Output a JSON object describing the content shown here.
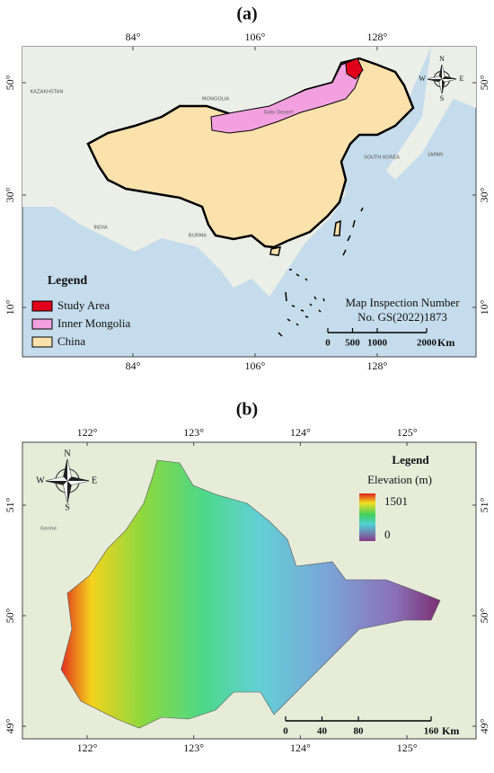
{
  "panel_a": {
    "label": "(a)",
    "lon_ticks": [
      {
        "value": 84,
        "label": "84°"
      },
      {
        "value": 106,
        "label": "106°"
      },
      {
        "value": 128,
        "label": "128°"
      }
    ],
    "lat_ticks": [
      {
        "value": 50,
        "label": "50°"
      },
      {
        "value": 30,
        "label": "30°"
      },
      {
        "value": 10,
        "label": "10°"
      }
    ],
    "place_labels": [
      "KAZAKHSTAN",
      "MONGOLIA",
      "Gobi Desert",
      "SOUTH KOREA",
      "JAPAN",
      "INDIA",
      "BURMA"
    ],
    "legend": {
      "title": "Legend",
      "items": [
        "Study Area",
        "Inner Mongolia",
        "China"
      ]
    },
    "note": [
      "Map Inspection Number",
      "No. GS(2022)1873"
    ],
    "scale_bar": {
      "ticks": [
        0,
        500,
        1000,
        2000
      ],
      "unit": "Km"
    },
    "compass": [
      "N",
      "E",
      "S",
      "W"
    ]
  },
  "panel_b": {
    "label": "(b)",
    "lon_ticks": [
      {
        "value": 122,
        "label": "122°"
      },
      {
        "value": 123,
        "label": "123°"
      },
      {
        "value": 124,
        "label": "124°"
      },
      {
        "value": 125,
        "label": "125°"
      }
    ],
    "lat_ticks": [
      {
        "value": 51,
        "label": "51°"
      },
      {
        "value": 50,
        "label": "50°"
      },
      {
        "value": 49,
        "label": "49°"
      }
    ],
    "place_labels": [
      "Genhe"
    ],
    "legend": {
      "title": "Legend",
      "subtitle": "Elevation (m)",
      "max": 1501,
      "min": 0
    },
    "scale_bar": {
      "ticks": [
        0,
        40,
        80,
        160
      ],
      "unit": "Km"
    },
    "compass": [
      "N",
      "E",
      "S",
      "W"
    ]
  }
}
